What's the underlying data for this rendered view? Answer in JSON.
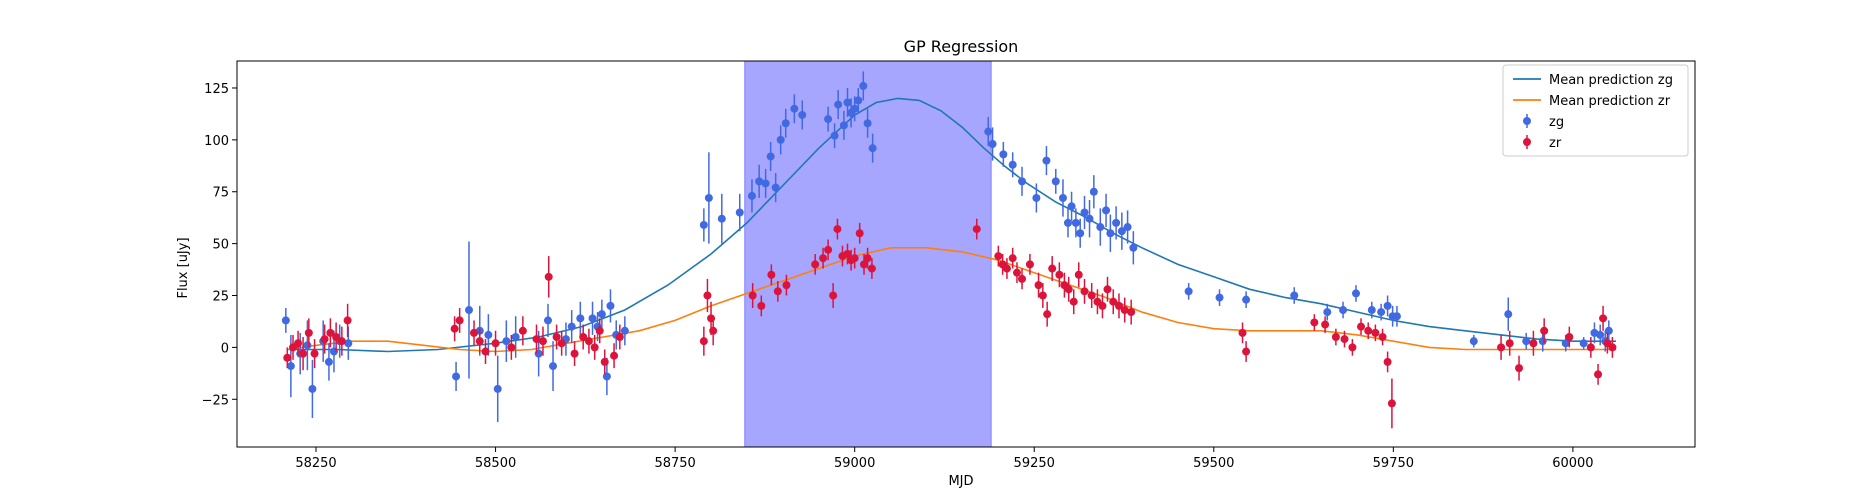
{
  "chart_data": {
    "type": "scatter",
    "title": "GP Regression",
    "xlabel": "MJD",
    "ylabel": "Flux [uJy]",
    "xlim": [
      58140,
      60170
    ],
    "ylim": [
      -48,
      138
    ],
    "xticks": [
      58250,
      58500,
      58750,
      59000,
      59250,
      59500,
      59750,
      60000
    ],
    "yticks": [
      -25,
      0,
      25,
      50,
      75,
      100,
      125
    ],
    "grid": false,
    "legend_position": "top-right",
    "shaded_region": {
      "x": [
        58847,
        59190
      ],
      "color": "#a6a6ff"
    },
    "series": [
      {
        "name": "Mean prediction zg",
        "kind": "line",
        "color": "#1f77b4",
        "x": [
          58210,
          58280,
          58350,
          58420,
          58500,
          58560,
          58620,
          58680,
          58740,
          58800,
          58850,
          58900,
          58950,
          59000,
          59030,
          59060,
          59090,
          59120,
          59150,
          59180,
          59210,
          59240,
          59280,
          59320,
          59360,
          59400,
          59450,
          59500,
          59550,
          59600,
          59650,
          59700,
          59750,
          59800,
          59850,
          59900,
          59950,
          60000,
          60060
        ],
        "y": [
          -1,
          -1,
          -2,
          -1,
          2,
          5,
          10,
          18,
          30,
          45,
          60,
          78,
          96,
          112,
          118,
          120,
          119,
          114,
          106,
          96,
          87,
          79,
          70,
          63,
          55,
          48,
          40,
          34,
          28,
          24,
          21,
          17,
          13,
          10,
          8,
          6,
          4,
          3,
          3
        ]
      },
      {
        "name": "Mean prediction zr",
        "kind": "line",
        "color": "#ff7f0e",
        "x": [
          58210,
          58250,
          58300,
          58350,
          58400,
          58450,
          58500,
          58550,
          58600,
          58650,
          58700,
          58750,
          58800,
          58850,
          58900,
          58950,
          59000,
          59050,
          59100,
          59150,
          59200,
          59250,
          59300,
          59350,
          59400,
          59450,
          59500,
          59550,
          59600,
          59650,
          59700,
          59750,
          59800,
          59850,
          59900,
          59950,
          60000,
          60060
        ],
        "y": [
          -1,
          1,
          3,
          3,
          1,
          -1,
          -2,
          -1,
          2,
          5,
          8,
          13,
          20,
          26,
          32,
          38,
          44,
          48,
          48,
          46,
          42,
          36,
          30,
          24,
          17,
          12,
          9,
          8,
          8,
          8,
          6,
          3,
          0,
          -1,
          -1,
          -1,
          -1,
          -1
        ]
      },
      {
        "name": "zg",
        "kind": "errorbar",
        "color": "#4169e1",
        "x": [
          58208,
          58215,
          58228,
          58238,
          58245,
          58260,
          58268,
          58275,
          58283,
          58295,
          58445,
          58463,
          58478,
          58490,
          58503,
          58515,
          58528,
          58560,
          58573,
          58580,
          58598,
          58606,
          58618,
          58635,
          58642,
          58648,
          58655,
          58660,
          58668,
          58680,
          58790,
          58797,
          58815,
          58840,
          58857,
          58867,
          58876,
          58883,
          58890,
          58897,
          58904,
          58916,
          58927,
          58963,
          58972,
          58977,
          58985,
          58990,
          58995,
          59000,
          59005,
          59012,
          59018,
          59025,
          59186,
          59192,
          59207,
          59220,
          59233,
          59253,
          59267,
          59280,
          59290,
          59297,
          59302,
          59308,
          59314,
          59320,
          59327,
          59333,
          59342,
          59350,
          59356,
          59364,
          59372,
          59380,
          59388,
          59465,
          59508,
          59545,
          59612,
          59658,
          59680,
          59698,
          59720,
          59733,
          59742,
          59749,
          59755,
          59862,
          59910,
          59935,
          59958,
          59990,
          60015,
          60030,
          60038,
          60045,
          60050
        ],
        "y": [
          13,
          -9,
          -3,
          1,
          -20,
          3,
          -7,
          -2,
          3,
          2,
          -14,
          18,
          8,
          6,
          -20,
          3,
          5,
          -3,
          13,
          -9,
          4,
          10,
          14,
          14,
          10,
          16,
          -14,
          20,
          6,
          8,
          59,
          72,
          62,
          65,
          73,
          80,
          79,
          92,
          77,
          100,
          108,
          115,
          112,
          110,
          102,
          117,
          107,
          118,
          113,
          115,
          119,
          126,
          108,
          96,
          104,
          98,
          93,
          88,
          80,
          72,
          90,
          80,
          72,
          60,
          68,
          60,
          55,
          65,
          62,
          75,
          58,
          66,
          55,
          60,
          56,
          58,
          48,
          27,
          24,
          23,
          25,
          17,
          18,
          26,
          18,
          17,
          20,
          15,
          15,
          3,
          16,
          3,
          3,
          2,
          2,
          7,
          6,
          3,
          8
        ],
        "err": [
          6,
          15,
          10,
          12,
          14,
          10,
          9,
          10,
          8,
          8,
          7,
          33,
          12,
          10,
          16,
          10,
          10,
          11,
          8,
          12,
          8,
          8,
          8,
          8,
          7,
          7,
          9,
          8,
          7,
          7,
          8,
          22,
          12,
          9,
          8,
          8,
          7,
          7,
          7,
          7,
          7,
          7,
          7,
          6,
          6,
          7,
          7,
          7,
          7,
          6,
          6,
          7,
          7,
          7,
          7,
          8,
          6,
          6,
          7,
          7,
          7,
          6,
          9,
          7,
          7,
          7,
          7,
          8,
          9,
          8,
          9,
          8,
          9,
          8,
          9,
          8,
          8,
          4,
          4,
          4,
          4,
          4,
          4,
          4,
          4,
          4,
          5,
          5,
          5,
          3,
          8,
          4,
          5,
          4,
          3,
          5,
          5,
          5,
          5
        ]
      },
      {
        "name": "zr",
        "kind": "errorbar",
        "color": "#dc143c",
        "x": [
          58210,
          58218,
          58225,
          58232,
          58240,
          58248,
          58262,
          58270,
          58278,
          58286,
          58294,
          58443,
          58450,
          58470,
          58478,
          58486,
          58500,
          58522,
          58538,
          58557,
          58566,
          58574,
          58585,
          58592,
          58610,
          58622,
          58630,
          58638,
          58645,
          58652,
          58665,
          58673,
          58790,
          58795,
          58800,
          58803,
          58858,
          58870,
          58884,
          58893,
          58905,
          58945,
          58956,
          58963,
          58970,
          58976,
          58983,
          58990,
          58995,
          59000,
          59007,
          59013,
          59018,
          59024,
          59170,
          59200,
          59206,
          59212,
          59220,
          59226,
          59233,
          59244,
          59256,
          59262,
          59268,
          59275,
          59285,
          59292,
          59298,
          59305,
          59312,
          59320,
          59330,
          59338,
          59345,
          59352,
          59360,
          59368,
          59376,
          59385,
          59540,
          59545,
          59640,
          59655,
          59670,
          59682,
          59693,
          59705,
          59715,
          59725,
          59735,
          59742,
          59748,
          59900,
          59912,
          59925,
          59945,
          59960,
          59995,
          60025,
          60035,
          60042,
          60048,
          60055
        ],
        "y": [
          -5,
          0,
          2,
          -3,
          7,
          -3,
          4,
          7,
          5,
          3,
          13,
          9,
          13,
          7,
          3,
          -2,
          2,
          0,
          8,
          4,
          3,
          34,
          5,
          2,
          -3,
          5,
          3,
          0,
          8,
          -7,
          -4,
          5,
          3,
          25,
          14,
          8,
          25,
          20,
          35,
          27,
          30,
          40,
          43,
          47,
          25,
          57,
          44,
          45,
          42,
          43,
          55,
          40,
          43,
          38,
          57,
          44,
          40,
          38,
          43,
          36,
          33,
          40,
          30,
          25,
          16,
          38,
          35,
          30,
          28,
          22,
          35,
          27,
          25,
          22,
          20,
          28,
          22,
          20,
          18,
          17,
          7,
          -2,
          12,
          11,
          5,
          4,
          0,
          10,
          8,
          7,
          5,
          -7,
          -27,
          0,
          2,
          -10,
          2,
          8,
          5,
          0,
          -13,
          14,
          2,
          0
        ],
        "err": [
          5,
          6,
          6,
          8,
          7,
          7,
          7,
          7,
          7,
          7,
          8,
          6,
          6,
          6,
          6,
          6,
          6,
          6,
          7,
          7,
          7,
          10,
          6,
          6,
          6,
          6,
          6,
          6,
          6,
          6,
          6,
          6,
          7,
          8,
          8,
          7,
          6,
          5,
          5,
          5,
          5,
          5,
          5,
          5,
          6,
          5,
          5,
          5,
          5,
          5,
          5,
          5,
          5,
          5,
          5,
          5,
          5,
          5,
          5,
          5,
          5,
          5,
          6,
          6,
          6,
          6,
          6,
          6,
          6,
          6,
          6,
          6,
          6,
          6,
          6,
          6,
          6,
          6,
          6,
          6,
          5,
          5,
          4,
          4,
          4,
          4,
          4,
          4,
          4,
          4,
          4,
          5,
          12,
          6,
          6,
          6,
          6,
          6,
          5,
          5,
          5,
          6,
          5,
          5
        ]
      }
    ]
  }
}
